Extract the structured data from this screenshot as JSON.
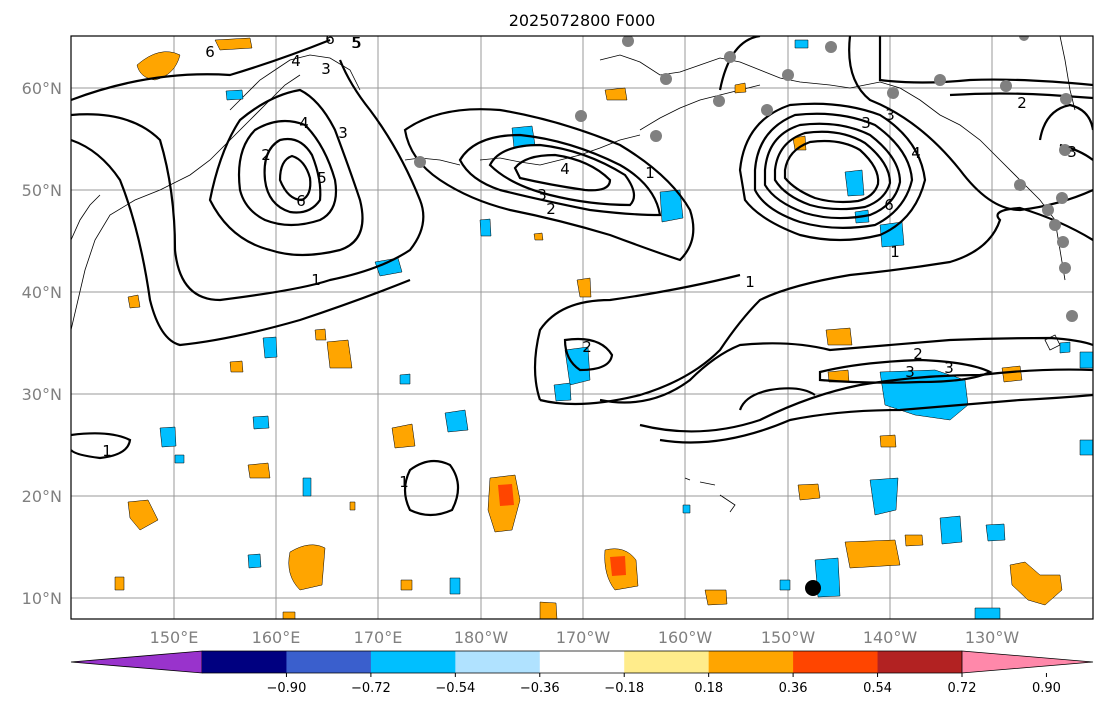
{
  "title": "2025072800 F000",
  "lat_labels": [
    "60°N",
    "50°N",
    "40°N",
    "30°N",
    "20°N",
    "10°N"
  ],
  "lon_labels": [
    "150°E",
    "160°E",
    "170°E",
    "180°W",
    "170°W",
    "160°W",
    "150°W",
    "140°W",
    "130°W"
  ],
  "colorbar": {
    "ticks": [
      "−0.90",
      "−0.72",
      "−0.54",
      "−0.36",
      "−0.18",
      "0.18",
      "0.36",
      "0.54",
      "0.72",
      "0.90"
    ],
    "colors": [
      "#9933cc",
      "#000080",
      "#3a5fcd",
      "#00bfff",
      "#b0e2ff",
      "#ffffff",
      "#ffec8b",
      "#ffa500",
      "#ff4500",
      "#b22222",
      "#ff88aa"
    ]
  },
  "contour_labels": {
    "c1": "6",
    "c2": "5",
    "c3": "4",
    "c4": "3",
    "c5": "6",
    "c6": "5",
    "c7": "4",
    "c8": "3",
    "c9": "2",
    "c10": "1",
    "c11": "2",
    "c12": "3",
    "c13": "4",
    "c14": "1",
    "c15": "1",
    "c16": "3",
    "c17": "4",
    "c18": "6",
    "c19": "1",
    "c20": "2",
    "c21": "3",
    "c22": "3",
    "c23": "1",
    "c24": "1",
    "c25": "2",
    "c26": "3",
    "c27": "5",
    "c28": "6",
    "c29": "2",
    "c30": "3"
  },
  "colors": {
    "positive": "#ffa500",
    "strong_positive": "#ff4500",
    "negative": "#00bfff",
    "station": "#808080"
  }
}
